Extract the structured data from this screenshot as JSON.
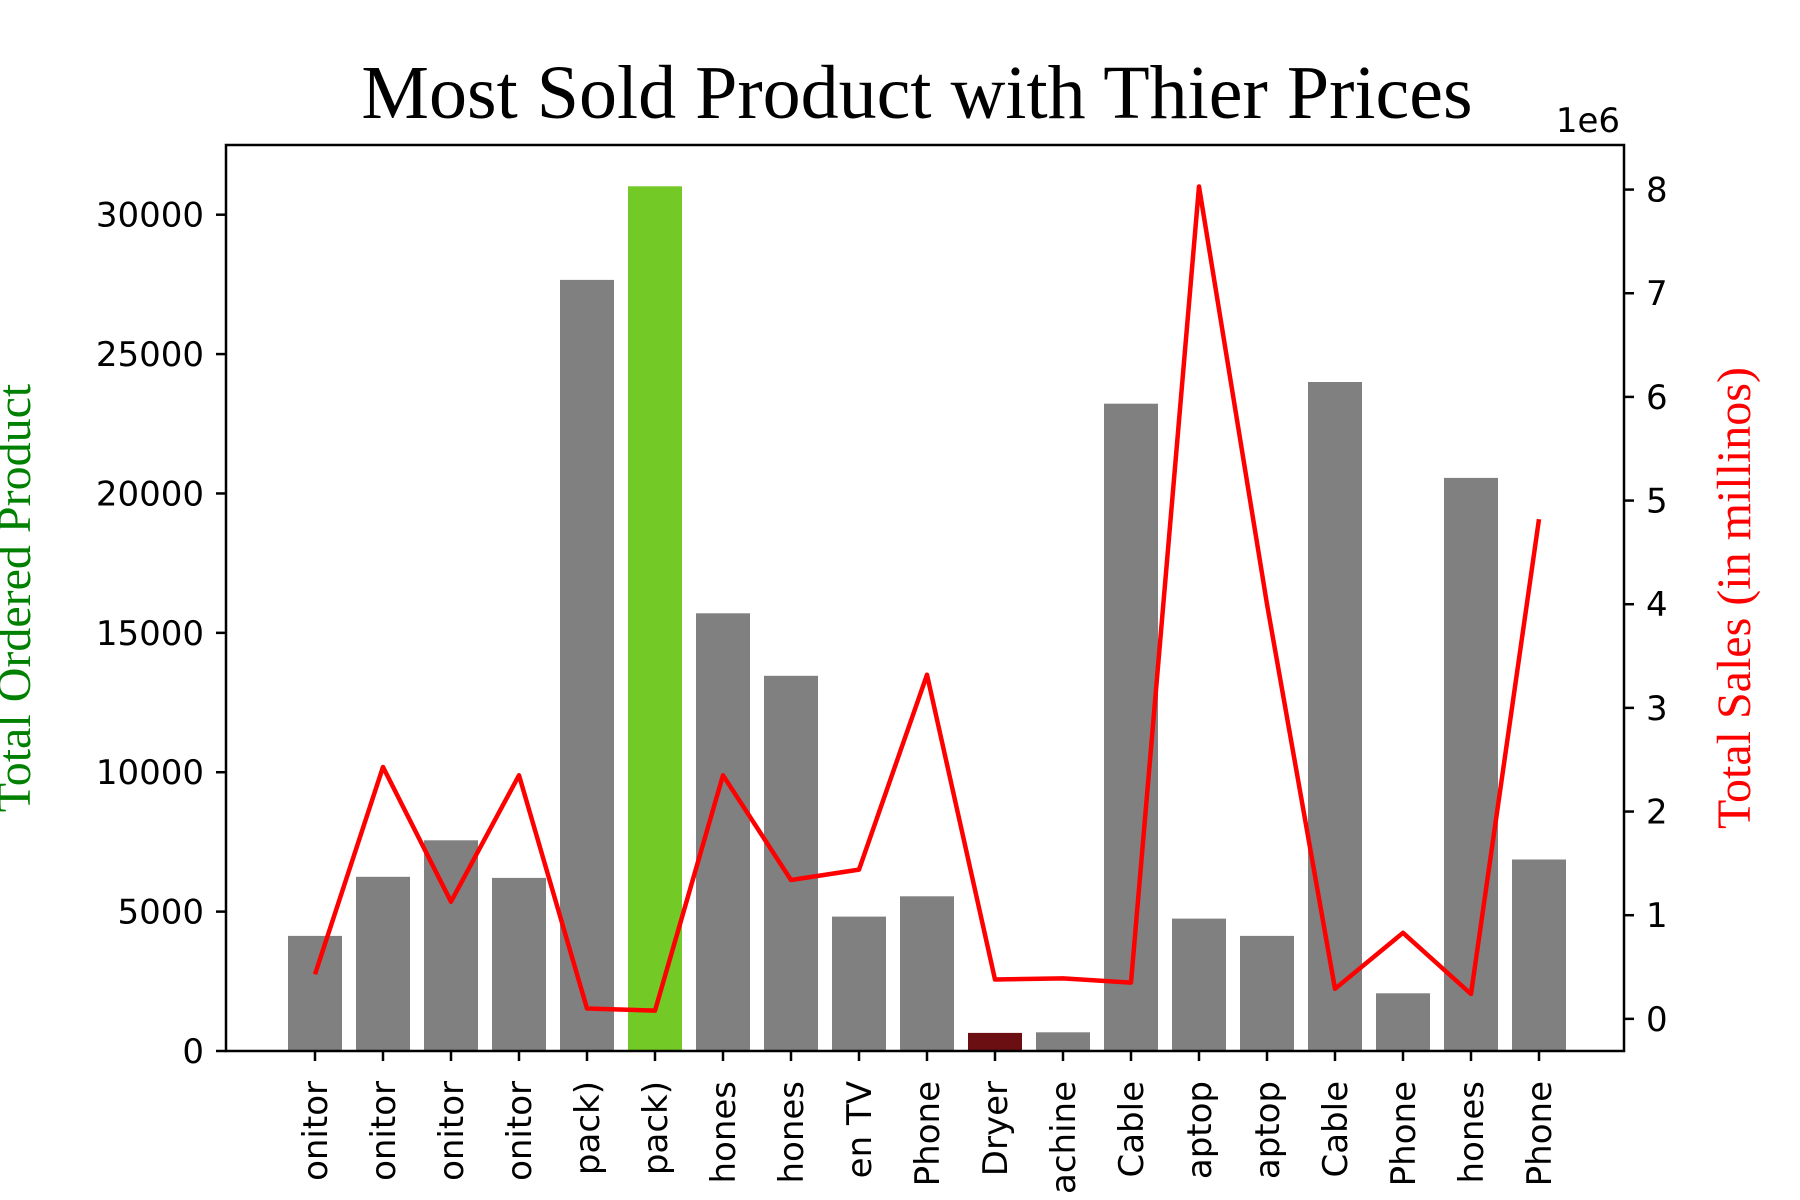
{
  "chart_data": {
    "type": "bar",
    "title": "Most Sold Product with Thier Prices",
    "xlabel": "",
    "categories": [
      "onitor",
      "onitor",
      "onitor",
      "onitor",
      "pack)",
      "pack)",
      "hones",
      "hones",
      "en TV",
      "Phone",
      "Dryer",
      "achine",
      "Cable",
      "aptop",
      "aptop",
      "Cable",
      "Phone",
      "hones",
      "Phone"
    ],
    "series": [
      {
        "axis": "left",
        "kind": "bar",
        "ylabel": "Total Ordered Product",
        "ylabel_color": "#008000",
        "values": [
          4130,
          6250,
          7560,
          6210,
          27660,
          31020,
          15700,
          13460,
          4820,
          5550,
          650,
          670,
          23220,
          4750,
          4130,
          24000,
          2070,
          20560,
          6870
        ],
        "default_color": "#808080",
        "highlight_max_color": "#73c926",
        "highlight_min_color": "#6b0f12",
        "ylim": [
          0,
          32500
        ],
        "ticks": [
          0,
          5000,
          10000,
          15000,
          20000,
          25000,
          30000
        ]
      },
      {
        "axis": "right",
        "kind": "line",
        "ylabel": "Total Sales (in millinos)",
        "ylabel_color": "#ff0000",
        "color": "#ff0000",
        "values": [
          430000,
          2430000,
          1130000,
          2350000,
          100000,
          80000,
          2350000,
          1340000,
          1440000,
          3320000,
          380000,
          390000,
          350000,
          8030000,
          4000000,
          290000,
          830000,
          240000,
          4820000
        ],
        "ylim": [
          -310000,
          8430000
        ],
        "ticks": [
          0,
          1,
          2,
          3,
          4,
          5,
          6,
          7,
          8
        ],
        "offset_text": "1e6"
      }
    ],
    "grid": false
  }
}
